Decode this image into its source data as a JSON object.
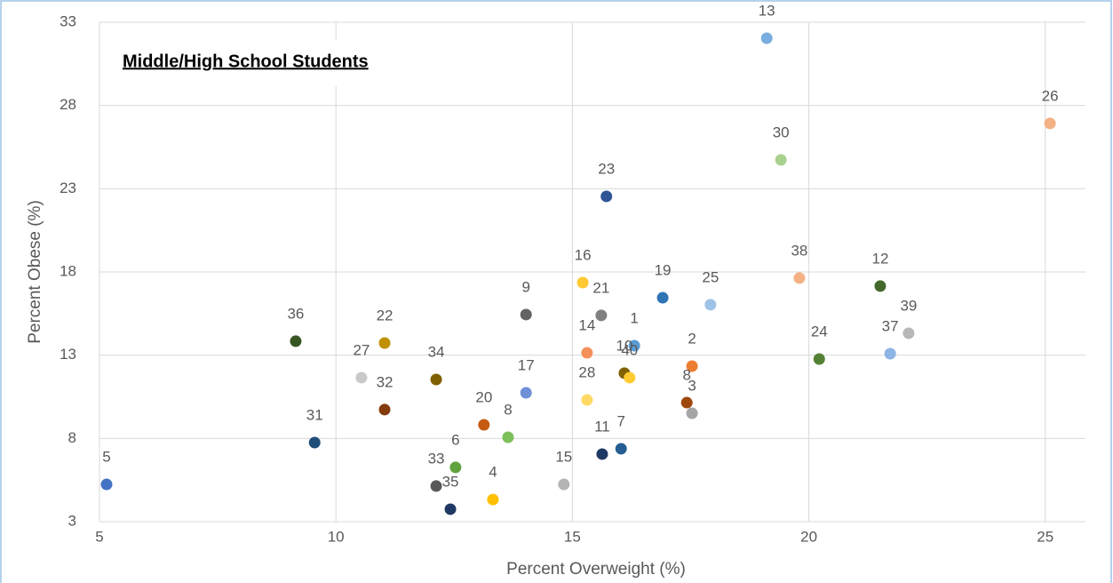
{
  "chart_data": {
    "type": "scatter",
    "title": "Middle/High School Students",
    "xlabel": "Percent Overweight (%)",
    "ylabel": "Percent Obese (%)",
    "xlim": [
      5,
      26
    ],
    "ylim": [
      3,
      33
    ],
    "xticks": [
      5,
      10,
      15,
      20,
      25
    ],
    "yticks": [
      3,
      8,
      13,
      18,
      23,
      28,
      33
    ],
    "grid": true,
    "series": [
      {
        "point_labels": [
          "5",
          "36",
          "31",
          "27",
          "22",
          "32",
          "34",
          "33",
          "35",
          "6",
          "4",
          "20",
          "8",
          "9",
          "17",
          "15",
          "16",
          "14",
          "28",
          "21",
          "23",
          "11",
          "7",
          "1",
          "10",
          "40",
          "19",
          "2",
          "8",
          "3",
          "25",
          "13",
          "30",
          "38",
          "24",
          "12",
          "37",
          "39",
          "26"
        ],
        "x": [
          5.15,
          9.15,
          9.55,
          10.54,
          11.03,
          11.03,
          12.12,
          12.12,
          12.42,
          12.53,
          13.32,
          13.13,
          13.64,
          14.02,
          14.02,
          14.82,
          15.22,
          15.31,
          15.31,
          15.61,
          15.72,
          15.63,
          16.03,
          16.31,
          16.1,
          16.21,
          16.91,
          17.53,
          17.42,
          17.53,
          17.92,
          19.11,
          19.41,
          19.8,
          20.22,
          21.51,
          21.72,
          22.11,
          25.1
        ],
        "values": [
          5.24,
          13.84,
          7.75,
          11.65,
          13.73,
          9.73,
          11.54,
          5.14,
          3.75,
          6.26,
          4.33,
          8.82,
          8.07,
          15.44,
          10.74,
          5.24,
          17.36,
          13.14,
          10.31,
          15.39,
          22.54,
          7.06,
          7.38,
          13.57,
          11.92,
          11.65,
          16.45,
          12.34,
          10.15,
          9.51,
          16.03,
          32.04,
          24.73,
          17.63,
          12.77,
          17.15,
          13.09,
          14.32,
          26.92
        ],
        "colors": [
          "#4472c4",
          "#375623",
          "#1f4e79",
          "#c9c9c9",
          "#bf9000",
          "#843c0c",
          "#7f6000",
          "#595959",
          "#203864",
          "#5fa33d",
          "#ffc000",
          "#c55a11",
          "#7cc05a",
          "#636363",
          "#6f8fd6",
          "#b4b4b4",
          "#ffc933",
          "#f4905a",
          "#ffd966",
          "#808080",
          "#2f5597",
          "#203864",
          "#255e91",
          "#5b9bd5",
          "#806000",
          "#ffcc33",
          "#2e75b6",
          "#ed7d31",
          "#9e480e",
          "#a5a5a5",
          "#9dc3e6",
          "#7aaee0",
          "#a9d18e",
          "#f4b183",
          "#548235",
          "#43682b",
          "#8db4e2",
          "#b7b7b7",
          "#f4b183"
        ]
      }
    ]
  }
}
